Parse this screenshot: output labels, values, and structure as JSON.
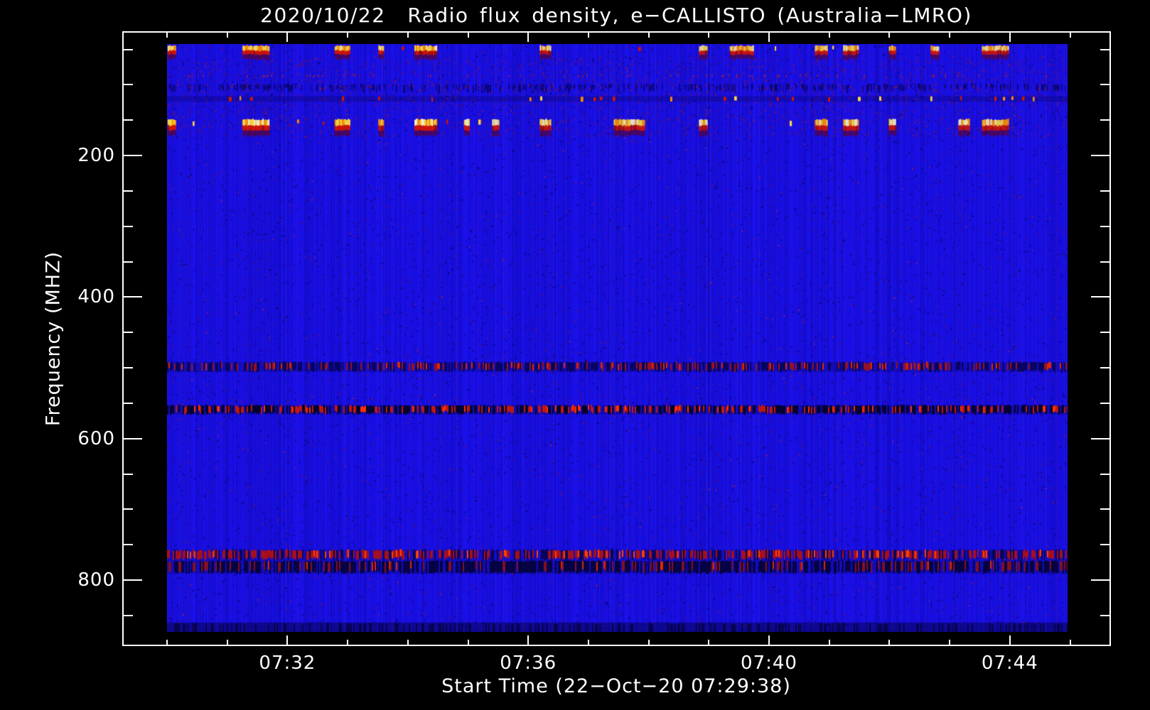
{
  "chart_data": {
    "type": "heatmap",
    "subtype": "radio-spectrogram",
    "title": "2020/10/22  Radio flux density, e−CALLISTO (Australia−LMRO)",
    "xlabel": "Start Time (22−Oct−20 07:29:38)",
    "ylabel": "Frequency (MHZ)",
    "x_axis": {
      "start_time": "07:29:38",
      "end_time": "07:45",
      "major_ticks": [
        {
          "label": "07:32",
          "minute": 2
        },
        {
          "label": "07:36",
          "minute": 6
        },
        {
          "label": "07:40",
          "minute": 10
        },
        {
          "label": "07:44",
          "minute": 14
        }
      ],
      "minor_tick_minutes": [
        0,
        1,
        3,
        4,
        5,
        7,
        8,
        9,
        11,
        12,
        13,
        15
      ],
      "minor_tick_times": [
        "07:30",
        "07:31",
        "07:33",
        "07:34",
        "07:35",
        "07:37",
        "07:38",
        "07:39",
        "07:41",
        "07:42",
        "07:43",
        "07:45"
      ]
    },
    "y_axis": {
      "unit": "MHz",
      "direction": "inverted",
      "min": 42,
      "max": 875,
      "major_ticks": [
        200,
        400,
        600,
        800
      ],
      "minor_ticks": [
        50,
        100,
        150,
        250,
        300,
        350,
        450,
        500,
        550,
        650,
        700,
        750,
        850
      ]
    },
    "colormap": {
      "background_low": "#1a10e8",
      "very_low": "#000060",
      "mid": "#cc1500",
      "high": "#ff9000",
      "peak": "#ffe24a",
      "saturated": "#fff7d0",
      "description": "blue background, dark navy for dips, red-orange-yellow-white for increasing flux"
    },
    "rfi_bands": [
      {
        "freq_mhz": [
          44,
          60
        ],
        "style": "bright_bursts",
        "desc": "intermittent strong RFI bursts, yellow-white cores over red"
      },
      {
        "freq_mhz": [
          85,
          90
        ],
        "style": "faint_red_speckle",
        "desc": "sparse weak red speckle line"
      },
      {
        "freq_mhz": [
          98,
          110
        ],
        "style": "dark_mottle",
        "desc": "mottled dark/red stripe (FM band)"
      },
      {
        "freq_mhz": [
          116,
          124
        ],
        "style": "bright_dashes",
        "desc": "sparse bright yellow/orange/red dashes"
      },
      {
        "freq_mhz": [
          148,
          168
        ],
        "style": "bright_bursts_strong",
        "desc": "strongest intermittent RFI bursts, white-yellow cores"
      },
      {
        "freq_mhz": [
          492,
          506
        ],
        "style": "navy_red_speckle",
        "desc": "speckled interference lane, navy with red dashes"
      },
      {
        "freq_mhz": [
          553,
          566
        ],
        "style": "black_red_speckle",
        "desc": "strong speckled lane, black with bright red dashes"
      },
      {
        "freq_mhz": [
          757,
          773
        ],
        "style": "red_dash_row",
        "desc": "dense red speckle lane"
      },
      {
        "freq_mhz": [
          773,
          791
        ],
        "style": "dark_navy_red",
        "desc": "dark navy lane mixed with red speckle"
      },
      {
        "freq_mhz": [
          860,
          874
        ],
        "style": "dark_edge",
        "desc": "darker bottom edge of band"
      }
    ],
    "legend": "none",
    "grid": "off"
  }
}
